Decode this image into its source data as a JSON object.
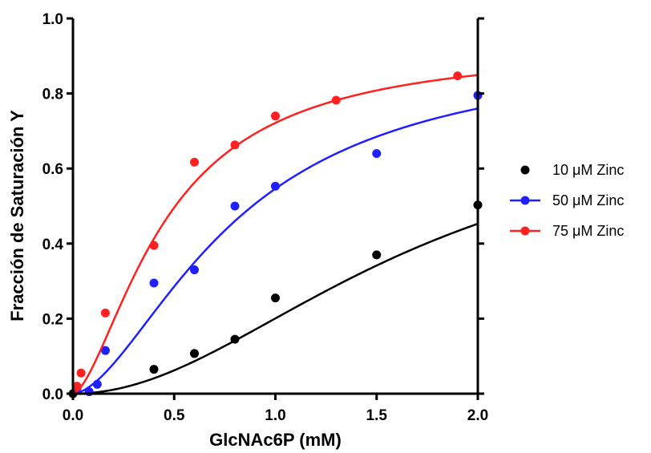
{
  "chart_data": {
    "type": "scatter",
    "title": "",
    "xlabel": "GlcNAc6P (mM)",
    "ylabel": "Fracción de Saturación Y",
    "xlim": [
      0,
      2.0
    ],
    "ylim": [
      0,
      1.0
    ],
    "x_ticks": [
      "0.0",
      "0.5",
      "1.0",
      "1.5",
      "2.0"
    ],
    "y_ticks": [
      "0.0",
      "0.2",
      "0.4",
      "0.6",
      "0.8",
      "1.0"
    ],
    "grid": false,
    "legend_position": "right",
    "series": [
      {
        "name": "10 μM Zinc",
        "color": "#000000",
        "x": [
          0.0,
          0.4,
          0.6,
          0.8,
          1.0,
          1.5,
          2.0
        ],
        "y": [
          0.0,
          0.065,
          0.107,
          0.145,
          0.255,
          0.37,
          0.503
        ],
        "fit": {
          "vmax": 0.78,
          "k": 1.7,
          "n": 2.0
        }
      },
      {
        "name": "50 μM Zinc",
        "color": "#1f1fff",
        "x": [
          0.02,
          0.08,
          0.12,
          0.16,
          0.4,
          0.6,
          0.8,
          1.0,
          1.5,
          2.0
        ],
        "y": [
          0.015,
          0.005,
          0.025,
          0.115,
          0.295,
          0.33,
          0.5,
          0.553,
          0.64,
          0.795
        ],
        "fit": {
          "vmax": 0.92,
          "k": 0.8,
          "n": 1.7
        }
      },
      {
        "name": "75 μM Zinc",
        "color": "#ff2020",
        "x": [
          0.02,
          0.04,
          0.16,
          0.4,
          0.6,
          0.8,
          1.0,
          1.3,
          1.9
        ],
        "y": [
          0.02,
          0.055,
          0.215,
          0.395,
          0.617,
          0.663,
          0.74,
          0.782,
          0.847
        ],
        "fit": {
          "vmax": 0.93,
          "k": 0.46,
          "n": 1.6
        }
      }
    ]
  }
}
